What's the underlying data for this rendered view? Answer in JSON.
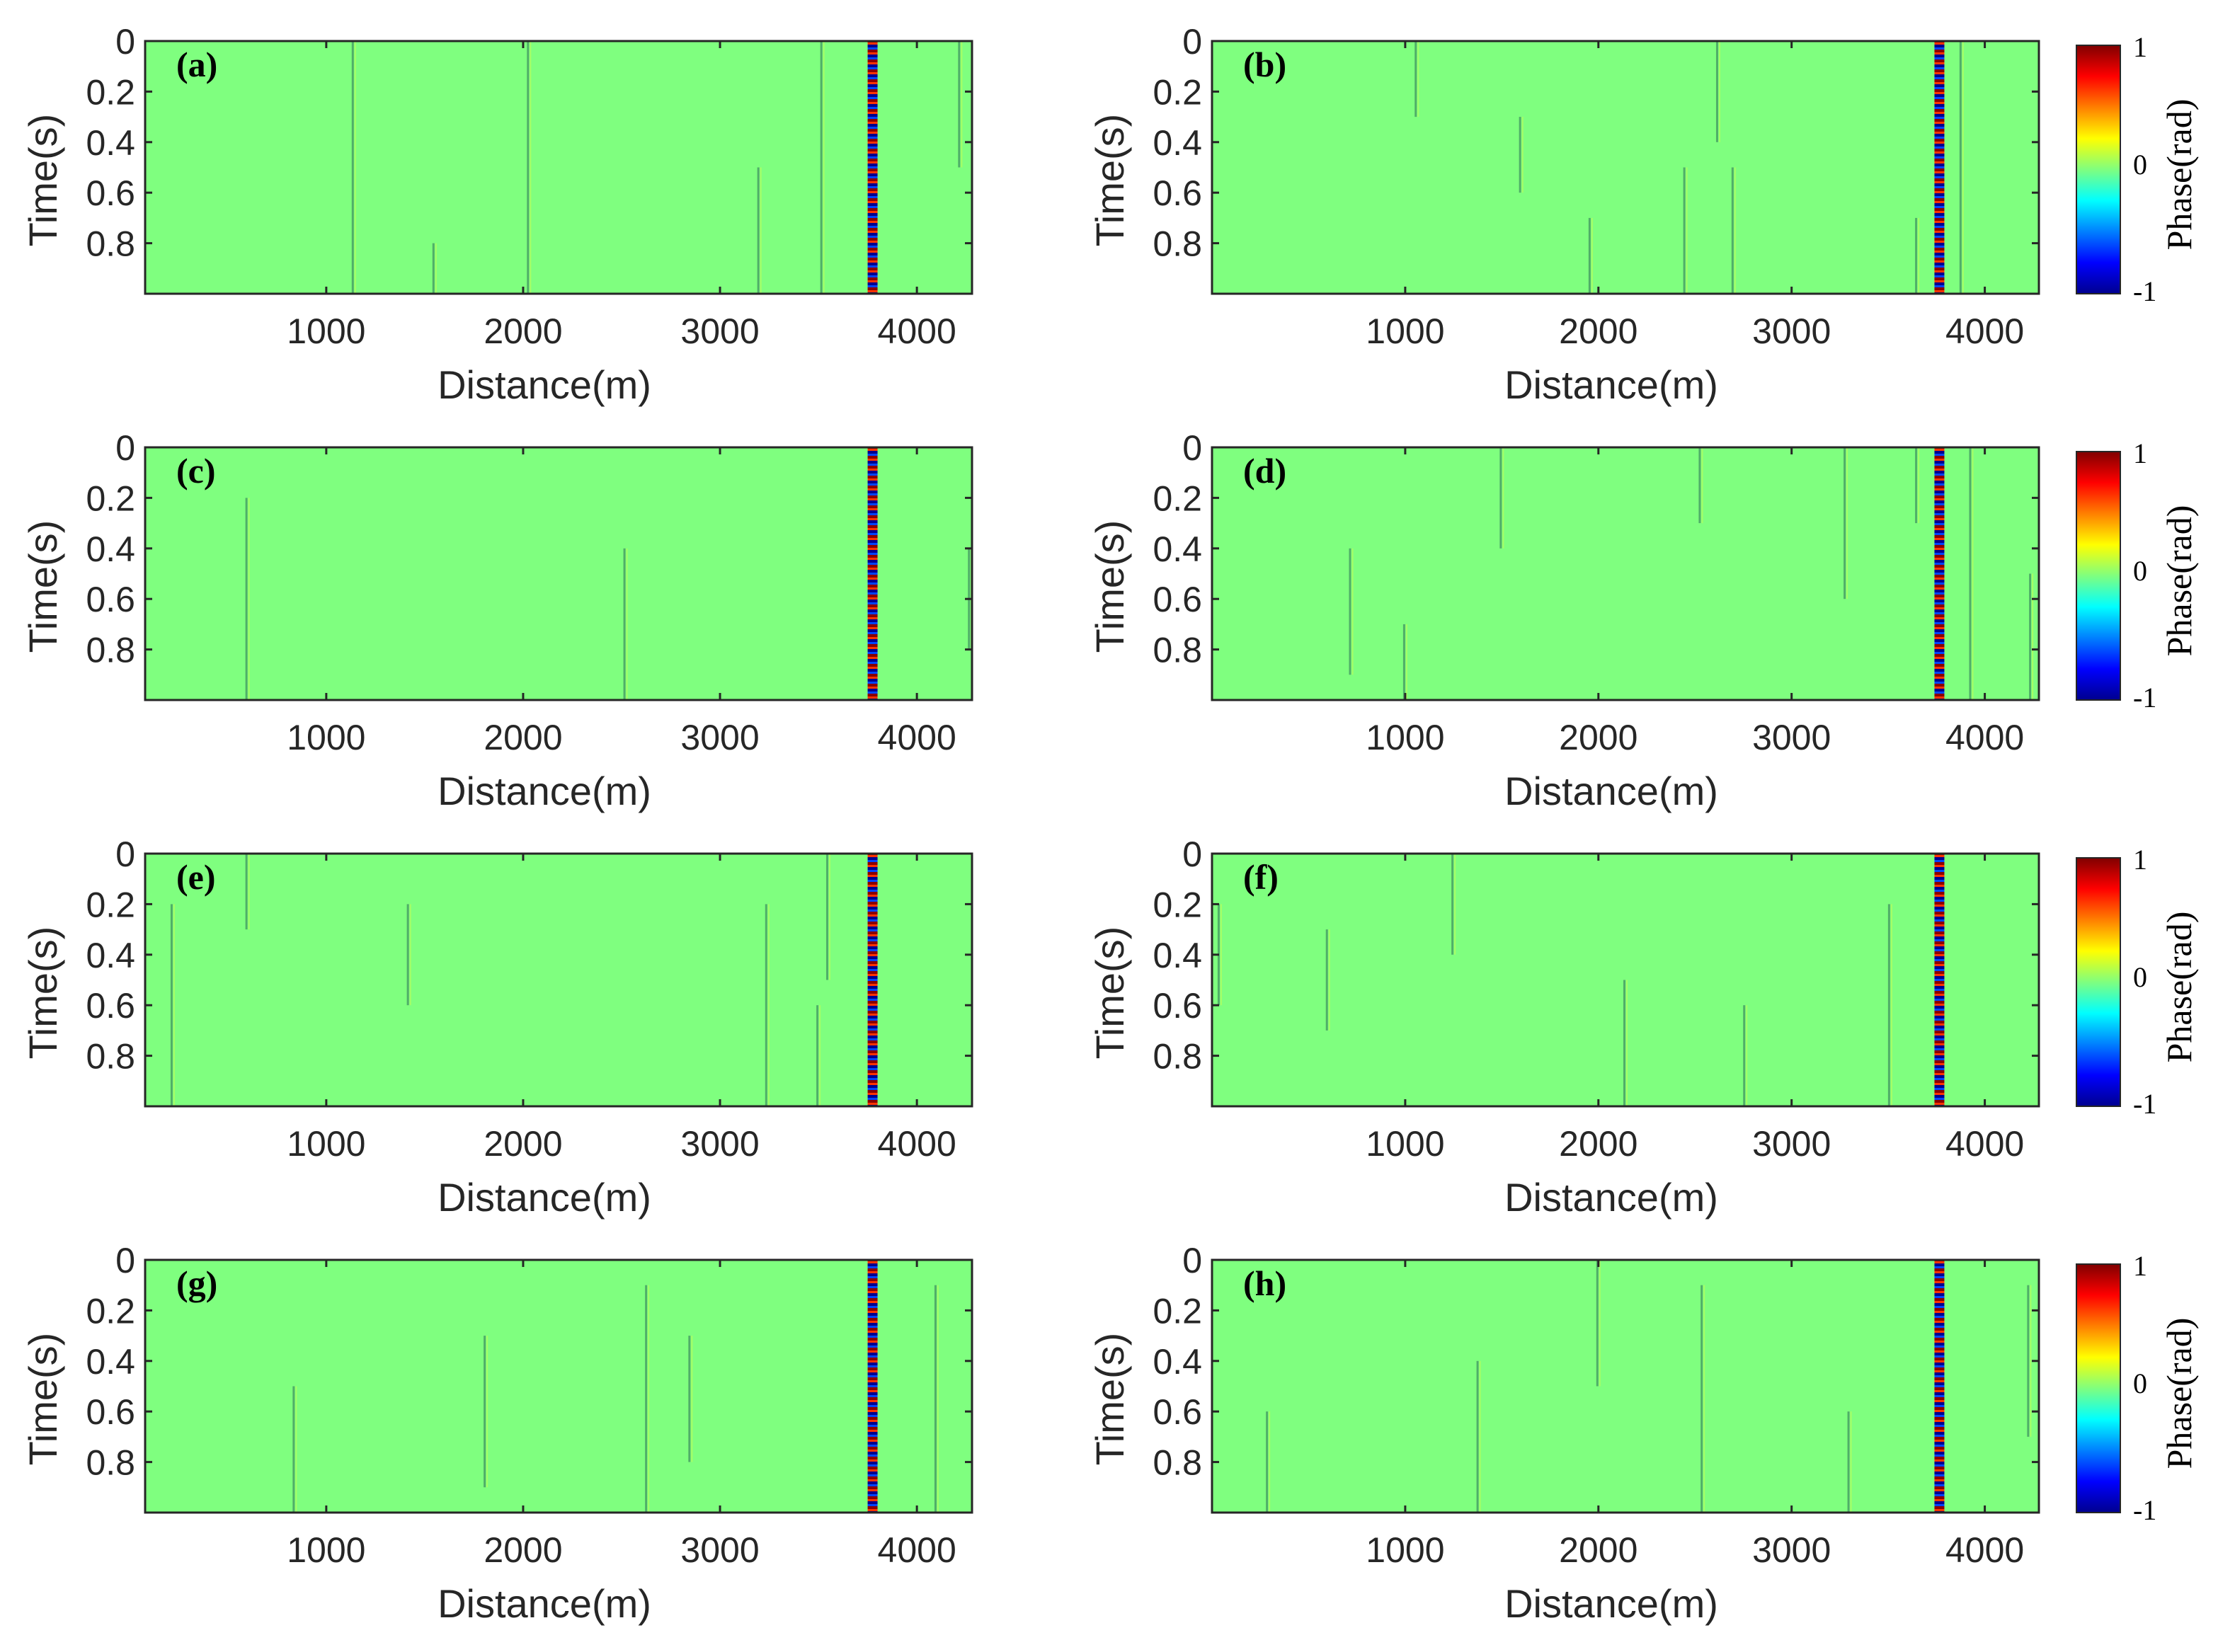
{
  "chart_data": [
    {
      "type": "heatmap",
      "panel": "(a)",
      "xlabel": "Distance(m)",
      "ylabel": "Time(s)",
      "xlim": [
        80,
        4280
      ],
      "ylim": [
        0,
        1
      ],
      "xticks": [
        "1000",
        "2000",
        "3000",
        "4000"
      ],
      "yticks": [
        "0",
        "0.2",
        "0.4",
        "0.6",
        "0.8"
      ],
      "background_phase": 0,
      "strong_anomaly_x": 3775,
      "weak_anomalies": [
        [
          1140,
          0,
          1
        ],
        [
          2030,
          0,
          1
        ],
        [
          3200,
          0.5,
          1
        ],
        [
          3520,
          0,
          1
        ],
        [
          4220,
          0,
          0.5
        ],
        [
          1550,
          0.8,
          1
        ]
      ]
    },
    {
      "type": "heatmap",
      "panel": "(b)",
      "xlabel": "Distance(m)",
      "ylabel": "Time(s)",
      "xlim": [
        0,
        4280
      ],
      "ylim": [
        0,
        1
      ],
      "xticks": [
        "1000",
        "2000",
        "3000",
        "4000"
      ],
      "yticks": [
        "0",
        "0.2",
        "0.4",
        "0.6",
        "0.8"
      ],
      "background_phase": 0,
      "strong_anomaly_x": 3765,
      "weak_anomalies": [
        [
          1060,
          0,
          0.3
        ],
        [
          1600,
          0.3,
          0.6
        ],
        [
          2450,
          0.5,
          1
        ],
        [
          2700,
          0.5,
          1
        ],
        [
          2620,
          0,
          0.4
        ],
        [
          1960,
          0.7,
          1
        ],
        [
          3650,
          0.7,
          1
        ],
        [
          3880,
          0,
          1
        ]
      ],
      "colorbar": {
        "label": "Phase(rad)",
        "ticks": [
          "1",
          "0",
          "-1"
        ]
      }
    },
    {
      "type": "heatmap",
      "panel": "(c)",
      "xlabel": "Distance(m)",
      "ylabel": "Time(s)",
      "xlim": [
        80,
        4280
      ],
      "ylim": [
        0,
        1
      ],
      "xticks": [
        "1000",
        "2000",
        "3000",
        "4000"
      ],
      "yticks": [
        "0",
        "0.2",
        "0.4",
        "0.6",
        "0.8"
      ],
      "background_phase": 0,
      "strong_anomaly_x": 3775,
      "weak_anomalies": [
        [
          600,
          0.2,
          1
        ],
        [
          2520,
          0.4,
          1
        ],
        [
          4270,
          0.4,
          0.8
        ]
      ]
    },
    {
      "type": "heatmap",
      "panel": "(d)",
      "xlabel": "Distance(m)",
      "ylabel": "Time(s)",
      "xlim": [
        0,
        4280
      ],
      "ylim": [
        0,
        1
      ],
      "xticks": [
        "1000",
        "2000",
        "3000",
        "4000"
      ],
      "yticks": [
        "0",
        "0.2",
        "0.4",
        "0.6",
        "0.8"
      ],
      "background_phase": 0,
      "strong_anomaly_x": 3765,
      "weak_anomalies": [
        [
          720,
          0.4,
          0.9
        ],
        [
          1000,
          0.7,
          1
        ],
        [
          1500,
          0,
          0.4
        ],
        [
          3280,
          0,
          0.6
        ],
        [
          3650,
          0,
          0.3
        ],
        [
          3930,
          0,
          1
        ],
        [
          4240,
          0.5,
          1
        ],
        [
          2530,
          0,
          0.3
        ]
      ],
      "colorbar": {
        "label": "Phase(rad)",
        "ticks": [
          "1",
          "0",
          "-1"
        ]
      }
    },
    {
      "type": "heatmap",
      "panel": "(e)",
      "xlabel": "Distance(m)",
      "ylabel": "Time(s)",
      "xlim": [
        80,
        4280
      ],
      "ylim": [
        0,
        1
      ],
      "xticks": [
        "1000",
        "2000",
        "3000",
        "4000"
      ],
      "yticks": [
        "0",
        "0.2",
        "0.4",
        "0.6",
        "0.8"
      ],
      "background_phase": 0,
      "strong_anomaly_x": 3775,
      "weak_anomalies": [
        [
          220,
          0.2,
          1
        ],
        [
          600,
          0,
          0.3
        ],
        [
          1420,
          0.2,
          0.6
        ],
        [
          3240,
          0.2,
          1
        ],
        [
          3500,
          0.6,
          1
        ],
        [
          3550,
          0,
          0.5
        ]
      ]
    },
    {
      "type": "heatmap",
      "panel": "(f)",
      "xlabel": "Distance(m)",
      "ylabel": "Time(s)",
      "xlim": [
        0,
        4280
      ],
      "ylim": [
        0,
        1
      ],
      "xticks": [
        "1000",
        "2000",
        "3000",
        "4000"
      ],
      "yticks": [
        "0",
        "0.2",
        "0.4",
        "0.6",
        "0.8"
      ],
      "background_phase": 0,
      "strong_anomaly_x": 3765,
      "weak_anomalies": [
        [
          40,
          0.2,
          0.6
        ],
        [
          600,
          0.3,
          0.7
        ],
        [
          1250,
          0,
          0.4
        ],
        [
          2140,
          0.5,
          1
        ],
        [
          2760,
          0.6,
          1
        ],
        [
          3510,
          0.2,
          1
        ]
      ],
      "colorbar": {
        "label": "Phase(rad)",
        "ticks": [
          "1",
          "0",
          "-1"
        ]
      }
    },
    {
      "type": "heatmap",
      "panel": "(g)",
      "xlabel": "Distance(m)",
      "ylabel": "Time(s)",
      "xlim": [
        80,
        4280
      ],
      "ylim": [
        0,
        1
      ],
      "xticks": [
        "1000",
        "2000",
        "3000",
        "4000"
      ],
      "yticks": [
        "0",
        "0.2",
        "0.4",
        "0.6",
        "0.8"
      ],
      "background_phase": 0,
      "strong_anomaly_x": 3775,
      "weak_anomalies": [
        [
          840,
          0.5,
          1
        ],
        [
          1810,
          0.3,
          0.9
        ],
        [
          2630,
          0.1,
          1
        ],
        [
          2850,
          0.3,
          0.8
        ],
        [
          4100,
          0.1,
          1
        ]
      ]
    },
    {
      "type": "heatmap",
      "panel": "(h)",
      "xlabel": "Distance(m)",
      "ylabel": "Time(s)",
      "xlim": [
        0,
        4280
      ],
      "ylim": [
        0,
        1
      ],
      "xticks": [
        "1000",
        "2000",
        "3000",
        "4000"
      ],
      "yticks": [
        "0",
        "0.2",
        "0.4",
        "0.6",
        "0.8"
      ],
      "background_phase": 0,
      "strong_anomaly_x": 3765,
      "weak_anomalies": [
        [
          290,
          0.6,
          1
        ],
        [
          1380,
          0.4,
          1
        ],
        [
          2000,
          0,
          0.5
        ],
        [
          2540,
          0.1,
          1
        ],
        [
          3300,
          0.6,
          1
        ],
        [
          4230,
          0.1,
          0.7
        ]
      ],
      "colorbar": {
        "label": "Phase(rad)",
        "ticks": [
          "1",
          "0",
          "-1"
        ]
      }
    }
  ]
}
